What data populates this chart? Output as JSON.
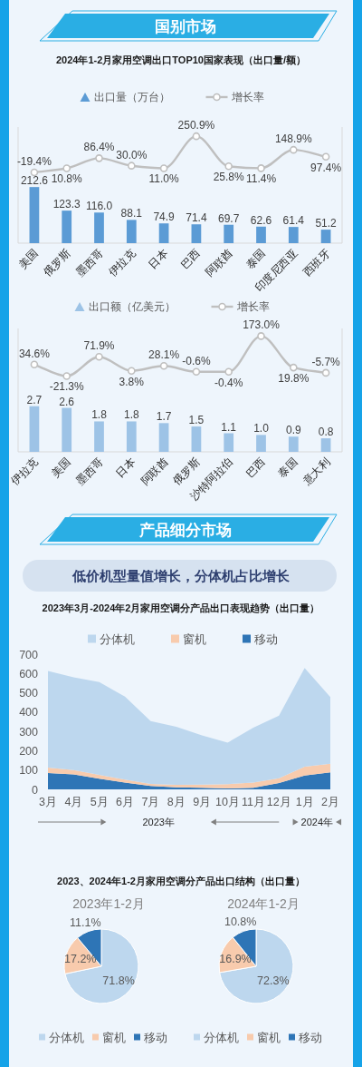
{
  "chart_data": [
    {
      "type": "other",
      "title": "国别市场"
    },
    {
      "type": "bar",
      "title": "2024年1-2月家用空调出口TOP10国家表现（出口量/额）",
      "categories": [
        "美国",
        "俄罗斯",
        "墨西哥",
        "伊拉克",
        "日本",
        "巴西",
        "阿联酋",
        "泰国",
        "印度尼西亚",
        "西班牙"
      ],
      "series": [
        {
          "name": "出口量（万台）",
          "type": "bar",
          "color": "#5b9bd5",
          "values": [
            212.6,
            123.3,
            116.0,
            88.1,
            74.9,
            71.4,
            69.7,
            62.6,
            61.4,
            51.2
          ],
          "value_labels": [
            "212.6",
            "123.3",
            "116.0",
            "88.1",
            "74.9",
            "71.4",
            "69.7",
            "62.6",
            "61.4",
            "51.2"
          ]
        },
        {
          "name": "增长率",
          "type": "line",
          "axis": "y2",
          "color": "#bfbfbf",
          "values": [
            -19.4,
            10.8,
            86.4,
            30.0,
            11.0,
            250.9,
            25.8,
            11.4,
            148.9,
            97.4
          ],
          "value_labels": [
            "-19.4%",
            "10.8%",
            "86.4%",
            "30.0%",
            "11.0%",
            "250.9%",
            "25.8%",
            "11.4%",
            "148.9%",
            "97.4%"
          ]
        }
      ],
      "ylim": [
        0,
        440
      ],
      "y2lim": [
        -550,
        320
      ],
      "data_labels": true,
      "marker": "circle",
      "legend": "top",
      "tick_labels": "x"
    },
    {
      "type": "bar",
      "categories": [
        "伊拉克",
        "美国",
        "墨西哥",
        "日本",
        "阿联酋",
        "俄罗斯",
        "沙特阿拉伯",
        "巴西",
        "泰国",
        "意大利"
      ],
      "series": [
        {
          "name": "出口额（亿美元）",
          "type": "bar",
          "color": "#9dc3e6",
          "values": [
            2.7,
            2.6,
            1.8,
            1.8,
            1.7,
            1.5,
            1.1,
            1.0,
            0.9,
            0.8
          ],
          "value_labels": [
            "2.7",
            "2.6",
            "1.8",
            "1.8",
            "1.7",
            "1.5",
            "1.1",
            "1.0",
            "0.9",
            "0.8"
          ]
        },
        {
          "name": "增长率",
          "type": "line",
          "axis": "y2",
          "color": "#bfbfbf",
          "values": [
            34.6,
            -21.3,
            71.9,
            3.8,
            28.1,
            -0.6,
            -0.4,
            173.0,
            19.8,
            -5.7
          ],
          "value_labels": [
            "34.6%",
            "-21.3%",
            "71.9%",
            "3.8%",
            "28.1%",
            "-0.6%",
            "-0.4%",
            "173.0%",
            "19.8%",
            "-5.7%"
          ]
        }
      ],
      "ylim": [
        0,
        7.3
      ],
      "y2lim": [
        -390,
        210
      ],
      "data_labels": true,
      "marker": "circle",
      "legend": "top",
      "tick_labels": "x"
    },
    {
      "type": "other",
      "title": "产品细分市场",
      "subtitle": "低价机型量值增长，分体机占比增长"
    },
    {
      "type": "area",
      "stacked": true,
      "title": "2023年3月-2024年2月家用空调分产品出口表现趋势（出口量）",
      "categories": [
        "3月",
        "4月",
        "5月",
        "6月",
        "7月",
        "8月",
        "9月",
        "10月",
        "11月",
        "12月",
        "1月",
        "2月"
      ],
      "series": [
        {
          "name": "移动",
          "color": "#2e75b6",
          "values": [
            85,
            78,
            55,
            35,
            18,
            10,
            8,
            5,
            8,
            33,
            72,
            88
          ]
        },
        {
          "name": "窗机",
          "color": "#f8cbad",
          "values": [
            28,
            22,
            20,
            15,
            10,
            14,
            17,
            22,
            27,
            24,
            46,
            45
          ]
        },
        {
          "name": "分体机",
          "color": "#bdd7ee",
          "values": [
            500,
            480,
            480,
            430,
            325,
            300,
            255,
            215,
            285,
            325,
            510,
            345
          ]
        }
      ],
      "ylim": [
        0,
        700
      ],
      "yticks": [
        0,
        100,
        200,
        300,
        400,
        500,
        600,
        700
      ],
      "legend": "top",
      "annotations": [
        "2023年",
        "2024年"
      ]
    },
    {
      "type": "pie",
      "title": "2023、2024年1-2月家用空调分产品出口结构（出口量）",
      "subtitle": "2023年1-2月",
      "categories": [
        "分体机",
        "窗机",
        "移动"
      ],
      "values": [
        71.8,
        17.2,
        11.1
      ],
      "colors": [
        "#bdd7ee",
        "#f8cbad",
        "#2e75b6"
      ],
      "value_labels": [
        "71.8%",
        "17.2%",
        "11.1%"
      ],
      "legend": "bottom"
    },
    {
      "type": "pie",
      "subtitle": "2024年1-2月",
      "categories": [
        "分体机",
        "窗机",
        "移动"
      ],
      "values": [
        72.3,
        16.9,
        10.8
      ],
      "colors": [
        "#bdd7ee",
        "#f8cbad",
        "#2e75b6"
      ],
      "value_labels": [
        "72.3%",
        "16.9%",
        "10.8%"
      ],
      "legend": "bottom"
    }
  ]
}
